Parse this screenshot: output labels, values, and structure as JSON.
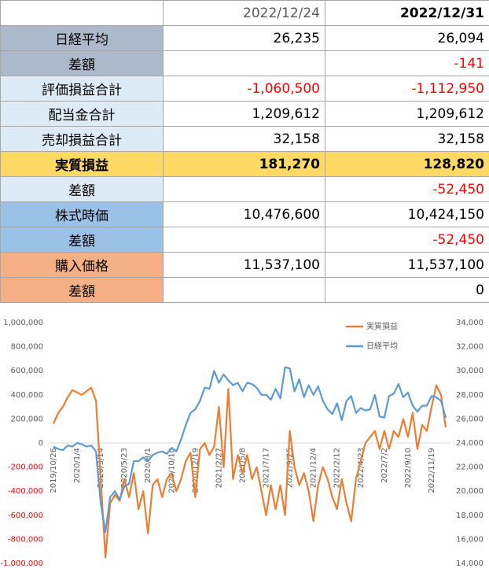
{
  "table": {
    "columns": [
      "2022/12/24",
      "2022/12/31"
    ],
    "rows": [
      {
        "label": "日経平均",
        "values": [
          "26,235",
          "26,094"
        ]
      },
      {
        "label": "差額",
        "values": [
          null,
          "-141"
        ]
      },
      {
        "label": "評価損益合計",
        "values": [
          "-1,060,500",
          "-1,112,950"
        ]
      },
      {
        "label": "配当金合計",
        "values": [
          "1,209,612",
          "1,209,612"
        ]
      },
      {
        "label": "売却損益合計",
        "values": [
          "32,158",
          "32,158"
        ]
      },
      {
        "label": "実質損益",
        "values": [
          "181,270",
          "128,820"
        ]
      },
      {
        "label": "差額",
        "values": [
          null,
          "-52,450"
        ]
      },
      {
        "label": "株式時価",
        "values": [
          "10,476,600",
          "10,424,150"
        ]
      },
      {
        "label": "差額",
        "values": [
          null,
          "-52,450"
        ]
      },
      {
        "label": "購入価格",
        "values": [
          "11,537,100",
          "11,537,100"
        ]
      },
      {
        "label": "差額",
        "values": [
          null,
          "0"
        ]
      }
    ]
  },
  "chart_data": {
    "type": "line",
    "categories": [
      "2019/10/26",
      null,
      null,
      null,
      null,
      "2020/1/4",
      null,
      null,
      null,
      null,
      "2020/3/14",
      null,
      null,
      null,
      null,
      "2020/5/23",
      null,
      null,
      null,
      null,
      "2020/8/1",
      null,
      null,
      null,
      null,
      "2020/10/10",
      null,
      null,
      null,
      null,
      "2020/12/19",
      null,
      null,
      null,
      null,
      "2021/2/27",
      null,
      null,
      null,
      null,
      "2021/5/8",
      null,
      null,
      null,
      null,
      "2021/7/17",
      null,
      null,
      null,
      null,
      "2021/9/25",
      null,
      null,
      null,
      null,
      "2021/12/4",
      null,
      null,
      null,
      null,
      "2022/2/12",
      null,
      null,
      null,
      null,
      "2022/4/23",
      null,
      null,
      null,
      null,
      "2022/7/2",
      null,
      null,
      null,
      null,
      "2022/9/10",
      null,
      null,
      null,
      null,
      "2022/11/19",
      null,
      null,
      null
    ],
    "series": [
      {
        "name": "実質損益",
        "color": "#ed7d31",
        "values": [
          160000,
          250000,
          300000,
          380000,
          440000,
          420000,
          400000,
          430000,
          460000,
          350000,
          -300000,
          -950000,
          -500000,
          -430000,
          -480000,
          -300000,
          -450000,
          -250000,
          -550000,
          -400000,
          -750000,
          -350000,
          -300000,
          -450000,
          -300000,
          -250000,
          -400000,
          -300000,
          -150000,
          -80000,
          -450000,
          -50000,
          0,
          -100000,
          -30000,
          300000,
          -200000,
          450000,
          -300000,
          -100000,
          -250000,
          -100000,
          -300000,
          -200000,
          -400000,
          -600000,
          -350000,
          -550000,
          -350000,
          -600000,
          100000,
          -200000,
          -350000,
          -250000,
          -400000,
          -650000,
          -350000,
          -200000,
          -300000,
          -450000,
          -550000,
          -300000,
          -500000,
          -650000,
          -300000,
          -150000,
          0,
          50000,
          100000,
          -50000,
          100000,
          -50000,
          100000,
          50000,
          200000,
          50000,
          250000,
          -50000,
          150000,
          100000,
          300000,
          480000,
          400000,
          128820
        ]
      },
      {
        "name": "日経平均",
        "color": "#5b9bd5",
        "axis": "y2",
        "values": [
          23700,
          23500,
          23400,
          23800,
          23700,
          24000,
          23900,
          23700,
          23800,
          23300,
          19000,
          16600,
          19500,
          20000,
          19300,
          20400,
          20600,
          22500,
          22500,
          22800,
          22500,
          23000,
          23200,
          23300,
          23100,
          23600,
          23300,
          24300,
          25500,
          26500,
          26800,
          27500,
          28600,
          28500,
          30000,
          29000,
          29700,
          29200,
          28800,
          29000,
          28300,
          29000,
          28900,
          28600,
          28000,
          28000,
          27600,
          28500,
          27700,
          30300,
          30200,
          28300,
          29300,
          27800,
          28800,
          28000,
          28700,
          27500,
          26800,
          26400,
          27300,
          25900,
          27500,
          27900,
          26500,
          26900,
          26700,
          26800,
          28000,
          26200,
          26100,
          27900,
          28100,
          28900,
          27800,
          28200,
          27100,
          26600,
          27100,
          27100,
          27900,
          27800,
          27500,
          26094
        ]
      }
    ],
    "ylim": [
      -1000000,
      1000000
    ],
    "yticks": [
      {
        "value": -1000000,
        "label": "-1,000,000"
      },
      {
        "value": -800000,
        "label": "-800,000"
      },
      {
        "value": -600000,
        "label": "-600,000"
      },
      {
        "value": -400000,
        "label": "-400,000"
      },
      {
        "value": -200000,
        "label": "-200,000"
      },
      0,
      {
        "value": 200000,
        "label": "200,000"
      },
      {
        "value": 400000,
        "label": "400,000"
      },
      {
        "value": 600000,
        "label": "600,000"
      },
      {
        "value": 800000,
        "label": "800,000"
      },
      {
        "value": 1000000,
        "label": "1,000,000"
      }
    ],
    "y2lim": [
      14000,
      34000
    ],
    "y2ticks": [
      {
        "value": 14000,
        "label": "14,000"
      },
      {
        "value": 16000,
        "label": "16,000"
      },
      {
        "value": 18000,
        "label": "18,000"
      },
      {
        "value": 20000,
        "label": "20,000"
      },
      {
        "value": 22000,
        "label": "22,000"
      },
      {
        "value": 24000,
        "label": "24,000"
      },
      {
        "value": 26000,
        "label": "26,000"
      },
      {
        "value": 28000,
        "label": "28,000"
      },
      {
        "value": 30000,
        "label": "30,000"
      },
      {
        "value": 32000,
        "label": "32,000"
      },
      {
        "value": 34000,
        "label": "34,000"
      }
    ],
    "negative_tick_color": "#ff0000",
    "grid": false,
    "legend": "top-right"
  }
}
